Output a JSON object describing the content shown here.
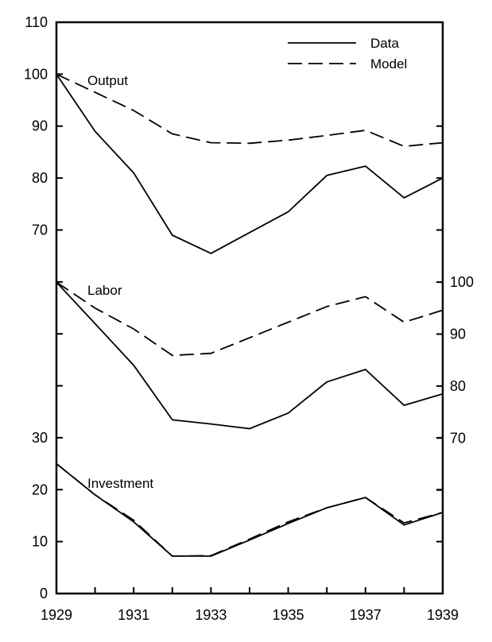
{
  "chart_data": {
    "type": "line",
    "x_ticks": [
      1929,
      1931,
      1933,
      1935,
      1937,
      1939
    ],
    "x_range": [
      1929,
      1939
    ],
    "legend": {
      "placement": "top-right",
      "entries": [
        {
          "label": "Data",
          "style": "solid"
        },
        {
          "label": "Model",
          "style": "dashed"
        }
      ]
    },
    "left_axis": {
      "range": [
        0,
        110
      ],
      "ticks": [
        0,
        10,
        20,
        30,
        70,
        80,
        90,
        100,
        110
      ]
    },
    "right_axis": {
      "range": [
        60,
        110
      ],
      "ticks": [
        70,
        80,
        90,
        100
      ]
    },
    "panels": [
      {
        "label": "Output",
        "axis": "left",
        "series": [
          {
            "name": "Data",
            "style": "solid",
            "x": [
              1929,
              1930,
              1931,
              1932,
              1933,
              1934,
              1935,
              1936,
              1937,
              1938,
              1939
            ],
            "y": [
              100,
              89,
              81,
              69,
              65.5,
              69.5,
              73.5,
              80.5,
              82.3,
              76.2,
              80
            ]
          },
          {
            "name": "Model",
            "style": "dashed",
            "x": [
              1929,
              1930,
              1931,
              1932,
              1933,
              1934,
              1935,
              1936,
              1937,
              1938,
              1939
            ],
            "y": [
              100,
              96.5,
              93,
              88.5,
              86.8,
              86.7,
              87.3,
              88.2,
              89.2,
              86.1,
              86.8
            ]
          }
        ]
      },
      {
        "label": "Labor",
        "axis": "right",
        "series": [
          {
            "name": "Data",
            "style": "solid",
            "x": [
              1929,
              1930,
              1931,
              1932,
              1933,
              1934,
              1935,
              1936,
              1937,
              1938,
              1939
            ],
            "y": [
              100,
              92,
              84,
              73.5,
              72.7,
              71.8,
              74.8,
              80.8,
              83.2,
              76.3,
              78.5
            ]
          },
          {
            "name": "Model",
            "style": "dashed",
            "x": [
              1929,
              1930,
              1931,
              1932,
              1933,
              1934,
              1935,
              1936,
              1937,
              1938,
              1939
            ],
            "y": [
              100,
              95,
              91,
              85.9,
              86.3,
              89.3,
              92.3,
              95.3,
              97.2,
              92.3,
              94.6
            ]
          }
        ]
      },
      {
        "label": "Investment",
        "axis": "left",
        "series": [
          {
            "name": "Data",
            "style": "solid",
            "x": [
              1929,
              1930,
              1931,
              1932,
              1933,
              1934,
              1935,
              1936,
              1937,
              1938,
              1939
            ],
            "y": [
              25,
              19,
              13.8,
              7.2,
              7.2,
              10.3,
              13.5,
              16.5,
              18.5,
              13.2,
              15.6
            ]
          },
          {
            "name": "Model",
            "style": "dashed",
            "x": [
              1929,
              1930,
              1931,
              1932,
              1933,
              1934,
              1935,
              1936,
              1937,
              1938,
              1939
            ],
            "y": [
              25,
              19,
              14.1,
              7.2,
              7.3,
              10.5,
              13.8,
              16.5,
              18.5,
              13.6,
              15.6
            ]
          }
        ]
      }
    ]
  }
}
